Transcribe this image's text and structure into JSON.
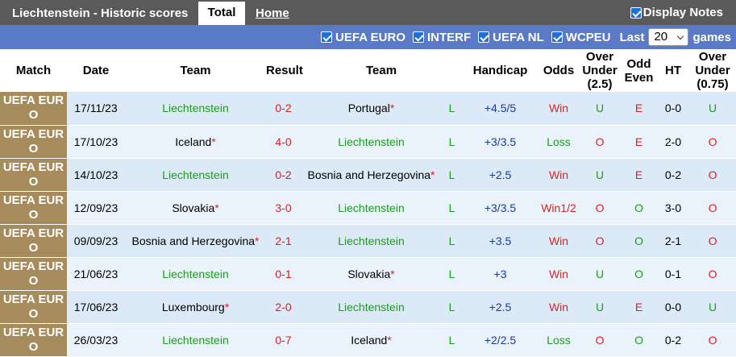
{
  "header": {
    "title": "Liechtenstein - Historic scores",
    "tabs": [
      "Total",
      "Home"
    ],
    "display_notes": "Display Notes"
  },
  "filters": {
    "competitions": [
      "UEFA EURO",
      "INTERF",
      "UEFA NL",
      "WCPEU"
    ],
    "last_label": "Last",
    "last_value": "20",
    "games_label": "games"
  },
  "table": {
    "columns": [
      "Match",
      "Date",
      "Team",
      "Result",
      "Team",
      "Handicap",
      "Odds",
      "Over Under (2.5)",
      "Odd Even",
      "HT",
      "Over Under (0.75)"
    ],
    "highlight_team": "Liechtenstein",
    "highlight_color": "#1e9a1e",
    "note_color": "#e02020",
    "score_color": "#d81e1e",
    "column_colors": {
      "odds": {
        "Win": "#e02020",
        "Win1/2": "#e02020",
        "Loss": "#1e9a1e"
      },
      "ou": {
        "O": "#e02020",
        "U": "#1e9a1e"
      },
      "oe": {
        "E": "#e02020",
        "O": "#1e9a1e"
      },
      "ou2": {
        "O": "#e02020",
        "U": "#1e9a1e"
      },
      "wl": {
        "L": "#1e9a1e"
      },
      "handicap": {
        "default": "#1a3aa0"
      }
    },
    "rows": [
      {
        "match": "UEFA EURO",
        "date": "17/11/23",
        "home": "Liechtenstein",
        "score": "0-2",
        "away": "Portugal",
        "away_note": "*",
        "wl": "L",
        "handicap": "+4.5/5",
        "odds": "Win",
        "ou": "U",
        "oe": "E",
        "ht": "0-0",
        "ou2": "U"
      },
      {
        "match": "UEFA EURO",
        "date": "17/10/23",
        "home": "Iceland",
        "home_note": "*",
        "score": "4-0",
        "away": "Liechtenstein",
        "wl": "L",
        "handicap": "+3/3.5",
        "odds": "Loss",
        "ou": "O",
        "oe": "E",
        "ht": "2-0",
        "ou2": "O"
      },
      {
        "match": "UEFA EURO",
        "date": "14/10/23",
        "home": "Liechtenstein",
        "score": "0-2",
        "away": "Bosnia and Herzegovina",
        "away_note": "*",
        "wl": "L",
        "handicap": "+2.5",
        "odds": "Win",
        "ou": "U",
        "oe": "E",
        "ht": "0-2",
        "ou2": "O"
      },
      {
        "match": "UEFA EURO",
        "date": "12/09/23",
        "home": "Slovakia",
        "home_note": "*",
        "score": "3-0",
        "away": "Liechtenstein",
        "wl": "L",
        "handicap": "+3/3.5",
        "odds": "Win1/2",
        "ou": "O",
        "oe": "O",
        "ht": "3-0",
        "ou2": "O"
      },
      {
        "match": "UEFA EURO",
        "date": "09/09/23",
        "home": "Bosnia and Herzegovina",
        "home_note": "*",
        "score": "2-1",
        "away": "Liechtenstein",
        "wl": "L",
        "handicap": "+3.5",
        "odds": "Win",
        "ou": "O",
        "oe": "O",
        "ht": "2-1",
        "ou2": "O"
      },
      {
        "match": "UEFA EURO",
        "date": "21/06/23",
        "home": "Liechtenstein",
        "score": "0-1",
        "away": "Slovakia",
        "away_note": "*",
        "wl": "L",
        "handicap": "+3",
        "odds": "Win",
        "ou": "U",
        "oe": "O",
        "ht": "0-1",
        "ou2": "O"
      },
      {
        "match": "UEFA EURO",
        "date": "17/06/23",
        "home": "Luxembourg",
        "home_note": "*",
        "score": "2-0",
        "away": "Liechtenstein",
        "wl": "L",
        "handicap": "+2.5",
        "odds": "Win",
        "ou": "U",
        "oe": "E",
        "ht": "0-0",
        "ou2": "U"
      },
      {
        "match": "UEFA EURO",
        "date": "26/03/23",
        "home": "Liechtenstein",
        "score": "0-7",
        "away": "Iceland",
        "away_note": "*",
        "wl": "L",
        "handicap": "+2/2.5",
        "odds": "Loss",
        "ou": "O",
        "oe": "O",
        "ht": "0-2",
        "ou2": "O"
      }
    ]
  }
}
